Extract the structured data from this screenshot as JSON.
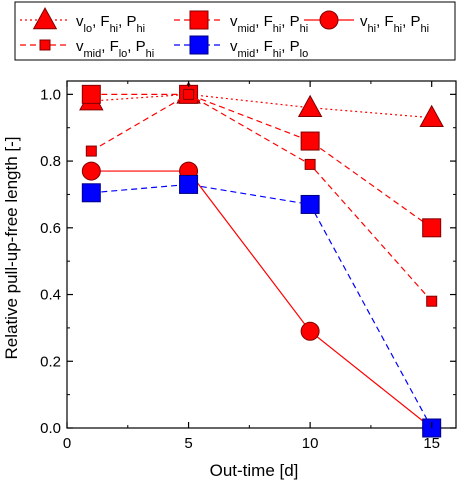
{
  "chart_data": {
    "type": "line",
    "xlabel": "Out-time [d]",
    "ylabel": "Relative pull-up-free length [-]",
    "xlim": [
      0,
      16
    ],
    "ylim": [
      0,
      1.04
    ],
    "x_ticks": [
      "0",
      "5",
      "10",
      "15"
    ],
    "y_ticks": [
      "0.0",
      "0.2",
      "0.4",
      "0.6",
      "0.8",
      "1.0"
    ],
    "x_tick_values": [
      0,
      5,
      10,
      15
    ],
    "y_tick_values": [
      0,
      0.2,
      0.4,
      0.6,
      0.8,
      1.0
    ],
    "legend_position": "top",
    "series": [
      {
        "key": "vlo_fhi_phi",
        "legend": [
          "v",
          "lo",
          ", F",
          "hi",
          ", P",
          "hi"
        ],
        "x": [
          1,
          5,
          10,
          15
        ],
        "values": [
          0.98,
          1.0,
          0.96,
          0.93
        ],
        "color": "#ff0000",
        "line_style": "dotted",
        "marker": "triangle",
        "marker_size": "large"
      },
      {
        "key": "vmid_fhi_phi",
        "legend": [
          "v",
          "mid",
          ", F",
          "hi",
          ", P",
          "hi"
        ],
        "x": [
          1,
          5,
          10,
          15
        ],
        "values": [
          1.0,
          1.0,
          0.86,
          0.6
        ],
        "color": "#ff0000",
        "line_style": "dashed",
        "marker": "square",
        "marker_size": "large"
      },
      {
        "key": "vhi_fhi_phi",
        "legend": [
          "v",
          "hi",
          ", F",
          "hi",
          ", P",
          "hi"
        ],
        "x": [
          1,
          5,
          10,
          15
        ],
        "values": [
          0.77,
          0.77,
          0.29,
          0.0
        ],
        "color": "#ff0000",
        "line_style": "solid",
        "marker": "circle",
        "marker_size": "large"
      },
      {
        "key": "vmid_flo_phi",
        "legend": [
          "v",
          "mid",
          ", F",
          "lo",
          ", P",
          "hi"
        ],
        "x": [
          1,
          5,
          10,
          15
        ],
        "values": [
          0.83,
          1.0,
          0.79,
          0.38
        ],
        "color": "#ff0000",
        "line_style": "dashed",
        "marker": "square",
        "marker_size": "small"
      },
      {
        "key": "vmid_fhi_plo",
        "legend": [
          "v",
          "mid",
          ", F",
          "hi",
          ", P",
          "lo"
        ],
        "x": [
          1,
          5,
          10,
          15
        ],
        "values": [
          0.705,
          0.73,
          0.67,
          0.0
        ],
        "color": "#0000ff",
        "line_style": "dashed",
        "marker": "square",
        "marker_size": "large"
      }
    ]
  }
}
